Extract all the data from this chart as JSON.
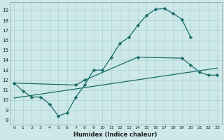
{
  "bg_color": "#cce8e8",
  "grid_color": "#b0d0d0",
  "line_color": "#1a6b6b",
  "marker_color": "#1a6b6b",
  "xlabel": "Humidex (Indice chaleur)",
  "xlim": [
    -0.5,
    23.5
  ],
  "ylim": [
    7.5,
    19.8
  ],
  "yticks": [
    8,
    9,
    10,
    11,
    12,
    13,
    14,
    15,
    16,
    17,
    18,
    19
  ],
  "xticks": [
    0,
    1,
    2,
    3,
    4,
    5,
    6,
    7,
    8,
    9,
    10,
    11,
    12,
    13,
    14,
    15,
    16,
    17,
    18,
    19,
    20,
    21,
    22,
    23
  ],
  "line1": {
    "x": [
      0,
      1,
      2,
      3,
      4,
      5,
      6,
      7,
      8,
      9,
      10,
      11,
      12,
      13,
      14,
      15,
      16,
      17,
      18,
      19,
      20
    ],
    "y": [
      11.7,
      10.9,
      10.3,
      10.3,
      9.6,
      8.4,
      8.7,
      10.3,
      11.5,
      13.0,
      13.0,
      14.3,
      15.7,
      16.3,
      17.5,
      18.5,
      19.1,
      19.2,
      18.7,
      18.1,
      16.3
    ]
  },
  "line2": {
    "x": [
      0,
      7,
      8,
      14,
      19,
      20,
      21,
      22,
      23
    ],
    "y": [
      11.7,
      11.5,
      12.0,
      14.3,
      14.2,
      13.5,
      12.8,
      12.5,
      12.5
    ]
  },
  "line3": {
    "x": [
      0,
      23
    ],
    "y": [
      10.2,
      13.2
    ]
  }
}
